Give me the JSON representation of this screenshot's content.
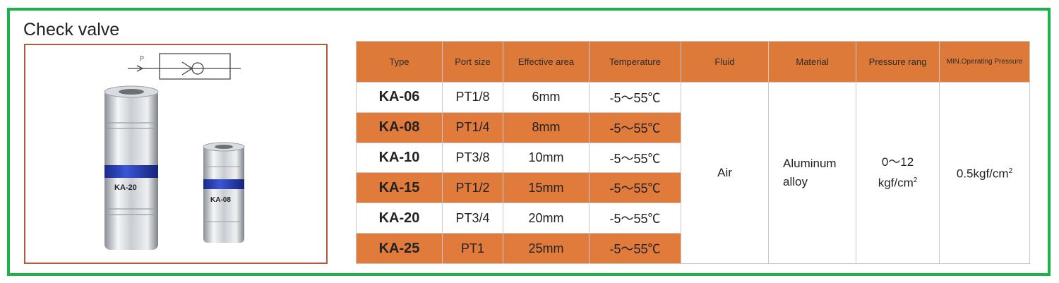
{
  "title": "Check valve",
  "symbol": {
    "port_label": "P"
  },
  "product_labels": {
    "large": "KA-20",
    "small": "KA-08"
  },
  "table": {
    "headers": [
      "Type",
      "Port size",
      "Effective area",
      "Temperature",
      "Fluid",
      "Material",
      "Pressure rang",
      "MIN.Operating Pressure"
    ],
    "rows": [
      {
        "type": "KA-06",
        "port": "PT1/8",
        "area": "6mm",
        "temp": "-5～55℃"
      },
      {
        "type": "KA-08",
        "port": "PT1/4",
        "area": "8mm",
        "temp": "-5～55℃"
      },
      {
        "type": "KA-10",
        "port": "PT3/8",
        "area": "10mm",
        "temp": "-5～55℃"
      },
      {
        "type": "KA-15",
        "port": "PT1/2",
        "area": "15mm",
        "temp": "-5～55℃"
      },
      {
        "type": "KA-20",
        "port": "PT3/4",
        "area": "20mm",
        "temp": "-5～55℃"
      },
      {
        "type": "KA-25",
        "port": "PT1",
        "area": "25mm",
        "temp": "-5～55℃"
      }
    ],
    "fluid": "Air",
    "material_line1": "Aluminum",
    "material_line2": "alloy",
    "pressure_line1": "0～12",
    "pressure_unit": "kgf/cm",
    "min_pressure": "0.5kgf/cm",
    "superscript": "2"
  },
  "colors": {
    "border_green": "#19b34a",
    "header_orange": "#dd7a3a",
    "row_orange": "#e07b3c",
    "photo_border": "#b4593a"
  }
}
